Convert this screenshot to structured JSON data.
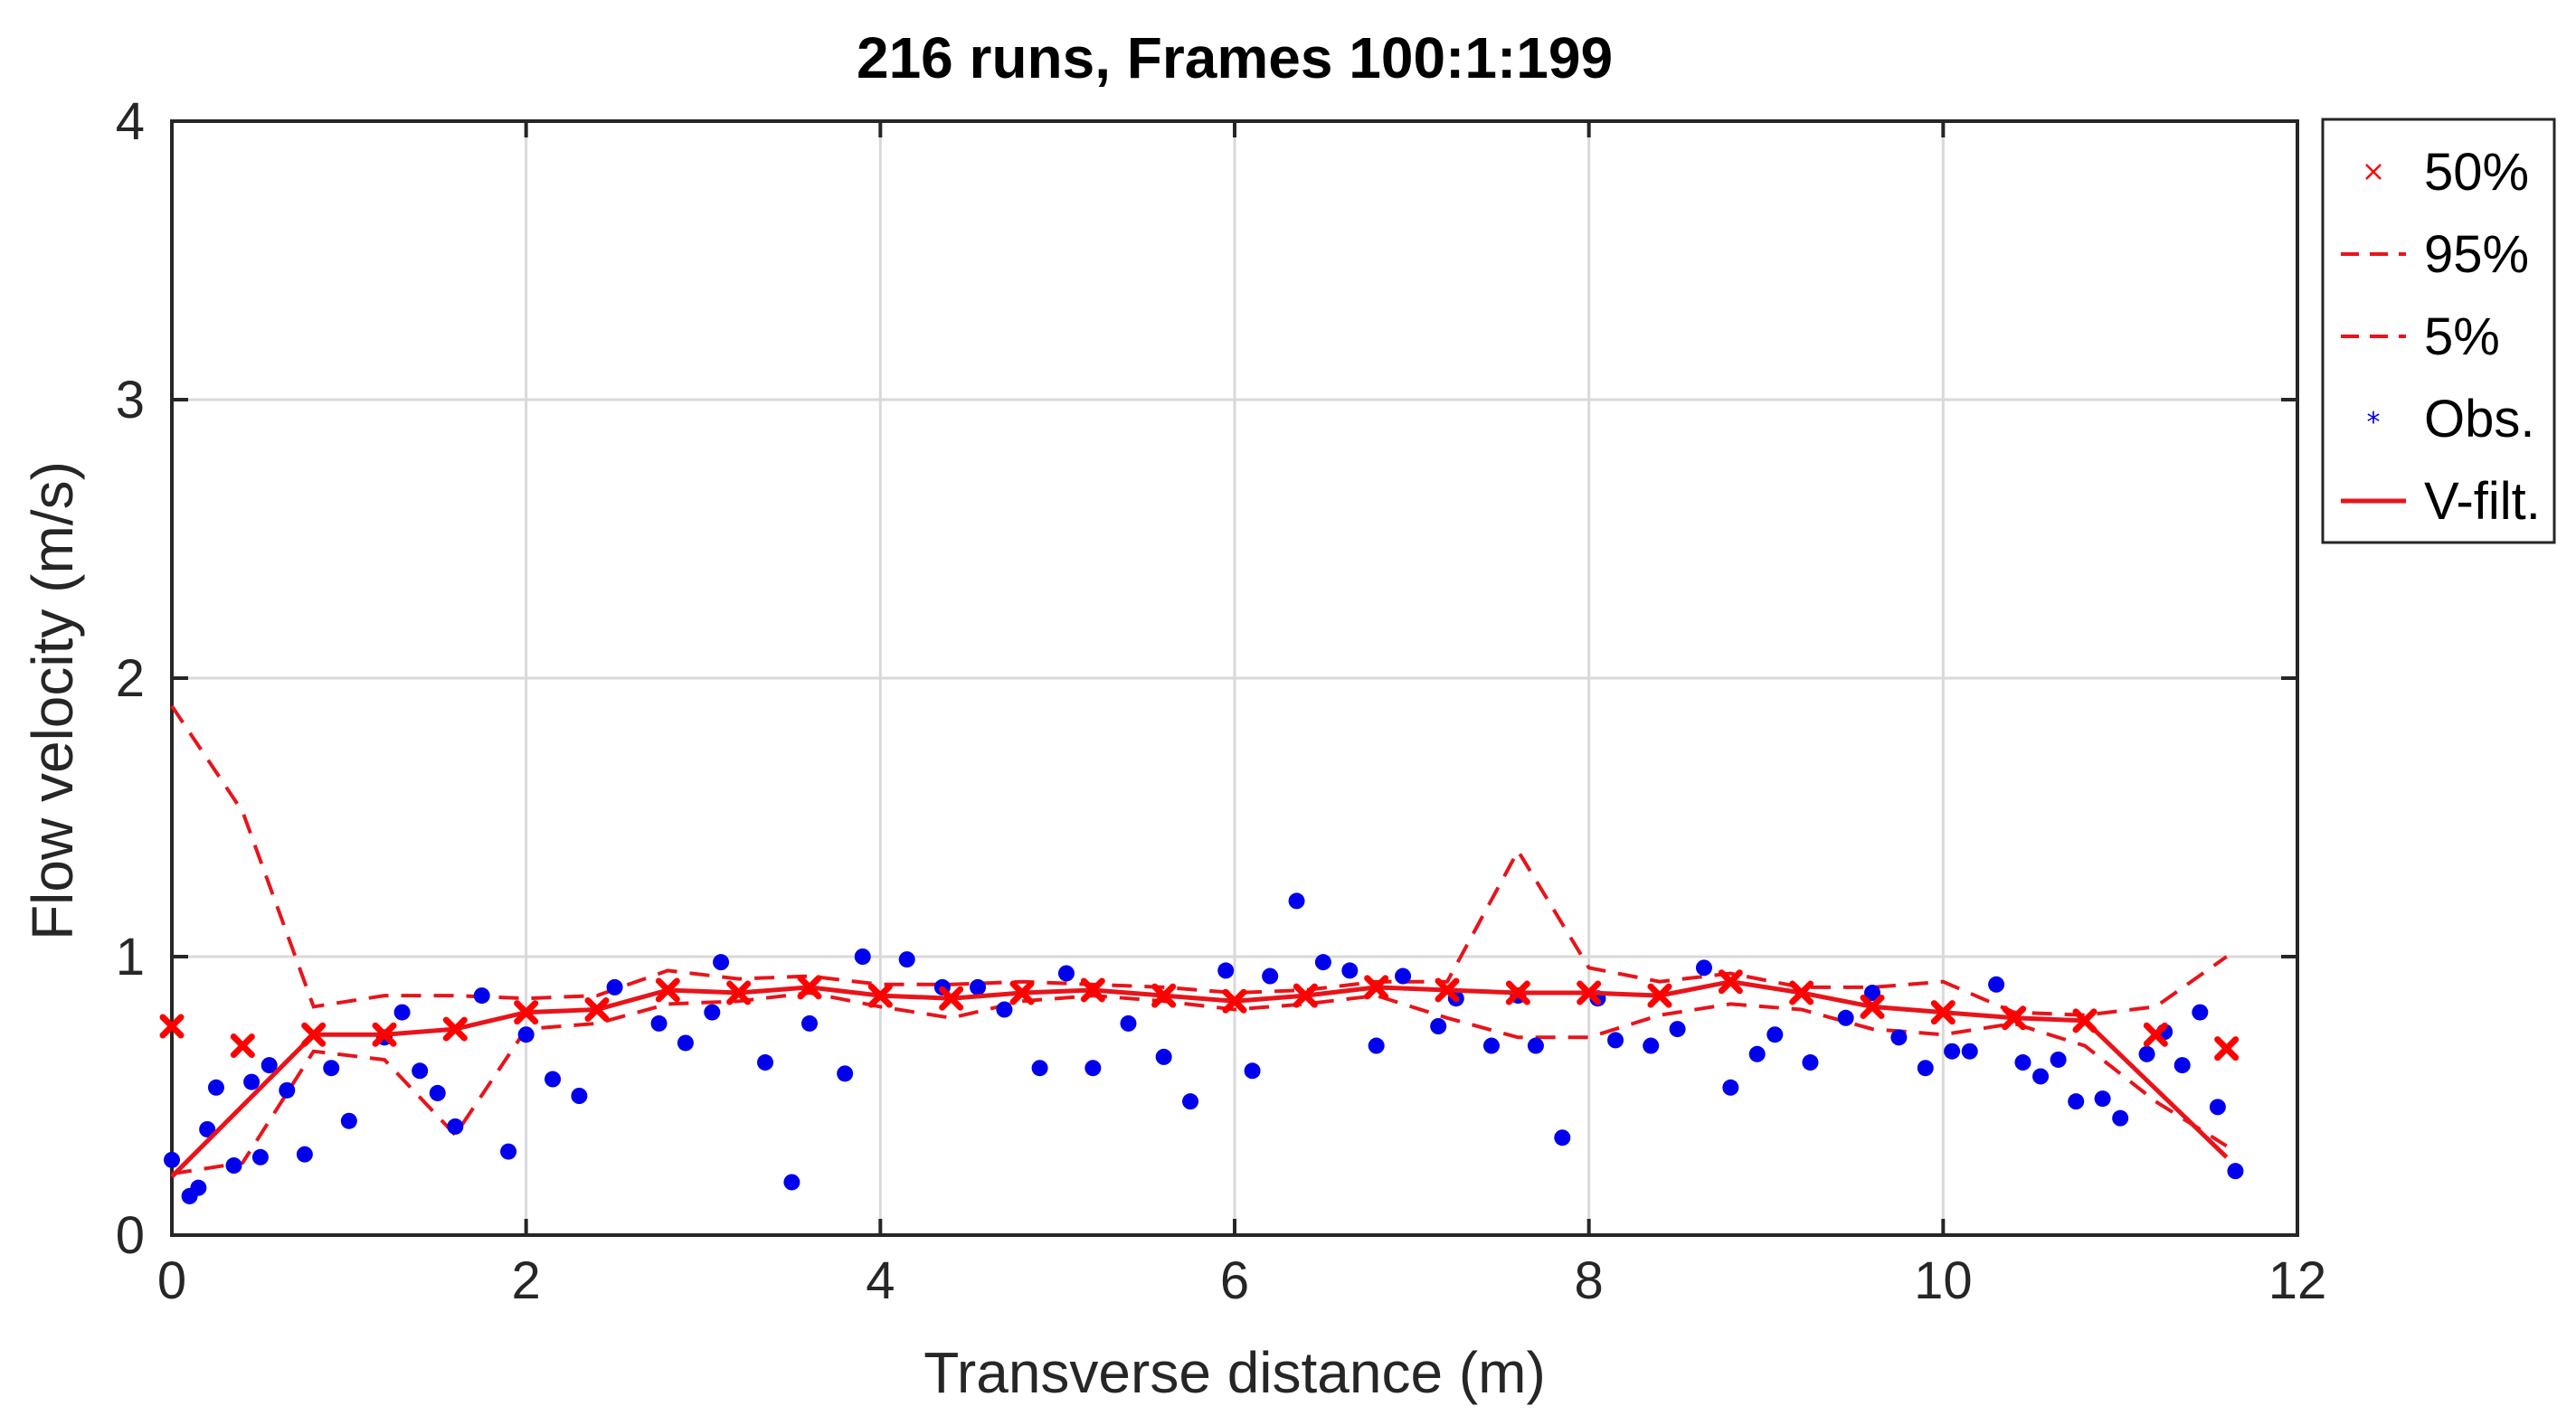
{
  "chart_data": {
    "type": "line",
    "title": "216 runs, Frames 100:1:199",
    "xlabel": "Transverse distance (m)",
    "ylabel": "Flow velocity (m/s)",
    "xlim": [
      0,
      12
    ],
    "ylim": [
      0,
      4
    ],
    "xticks": [
      "0",
      "2",
      "4",
      "6",
      "8",
      "10",
      "12"
    ],
    "yticks": [
      "0",
      "1",
      "2",
      "3",
      "4"
    ],
    "grid": true,
    "legend_position": "outside-right-top",
    "colors": {
      "median": "#ff0000",
      "band": "#e8141a",
      "obs": "#0000ee",
      "vfilt": "#e8141a",
      "grid": "#d9d9d9",
      "axis": "#262626"
    },
    "legend": [
      {
        "label": "50%",
        "style": "x-marker"
      },
      {
        "label": "95%",
        "style": "dashed"
      },
      {
        "label": "5%",
        "style": "dashed"
      },
      {
        "label": "Obs.",
        "style": "star-marker"
      },
      {
        "label": "V-filt.",
        "style": "solid"
      }
    ],
    "series": [
      {
        "name": "50%",
        "x": [
          0,
          0.4,
          0.8,
          1.2,
          1.6,
          2.0,
          2.4,
          2.8,
          3.2,
          3.6,
          4.0,
          4.4,
          4.8,
          5.2,
          5.6,
          6.0,
          6.4,
          6.8,
          7.2,
          7.6,
          8.0,
          8.4,
          8.8,
          9.2,
          9.6,
          10.0,
          10.4,
          10.8,
          11.2,
          11.6
        ],
        "y": [
          0.75,
          0.68,
          0.72,
          0.72,
          0.74,
          0.8,
          0.81,
          0.88,
          0.87,
          0.89,
          0.86,
          0.85,
          0.87,
          0.88,
          0.86,
          0.84,
          0.86,
          0.89,
          0.88,
          0.87,
          0.87,
          0.86,
          0.91,
          0.87,
          0.82,
          0.8,
          0.78,
          0.77,
          0.72,
          0.67
        ]
      },
      {
        "name": "95%",
        "x": [
          0,
          0.4,
          0.8,
          1.2,
          1.6,
          2.0,
          2.4,
          2.8,
          3.2,
          3.6,
          4.0,
          4.4,
          4.8,
          5.2,
          5.6,
          6.0,
          6.4,
          6.8,
          7.2,
          7.6,
          8.0,
          8.4,
          8.8,
          9.2,
          9.6,
          10.0,
          10.4,
          10.8,
          11.2,
          11.6
        ],
        "y": [
          1.9,
          1.52,
          0.82,
          0.86,
          0.86,
          0.85,
          0.86,
          0.95,
          0.92,
          0.93,
          0.9,
          0.9,
          0.91,
          0.9,
          0.89,
          0.87,
          0.88,
          0.91,
          0.91,
          1.38,
          0.96,
          0.91,
          0.94,
          0.89,
          0.89,
          0.91,
          0.8,
          0.79,
          0.82,
          1.0
        ]
      },
      {
        "name": "5%",
        "x": [
          0,
          0.4,
          0.8,
          1.2,
          1.6,
          2.0,
          2.4,
          2.8,
          3.2,
          3.6,
          4.0,
          4.4,
          4.8,
          5.2,
          5.6,
          6.0,
          6.4,
          6.8,
          7.2,
          7.6,
          8.0,
          8.4,
          8.8,
          9.2,
          9.6,
          10.0,
          10.4,
          10.8,
          11.2,
          11.6
        ],
        "y": [
          0.22,
          0.26,
          0.66,
          0.63,
          0.36,
          0.74,
          0.76,
          0.83,
          0.84,
          0.87,
          0.82,
          0.78,
          0.84,
          0.86,
          0.84,
          0.81,
          0.83,
          0.86,
          0.78,
          0.71,
          0.71,
          0.79,
          0.83,
          0.81,
          0.74,
          0.72,
          0.76,
          0.68,
          0.48,
          0.32
        ]
      },
      {
        "name": "Obs.",
        "x": [
          0.0,
          0.1,
          0.15,
          0.2,
          0.25,
          0.35,
          0.45,
          0.5,
          0.55,
          0.65,
          0.75,
          0.9,
          1.0,
          1.2,
          1.3,
          1.4,
          1.5,
          1.6,
          1.75,
          1.9,
          2.0,
          2.15,
          2.3,
          2.5,
          2.75,
          2.9,
          3.05,
          3.1,
          3.35,
          3.5,
          3.6,
          3.8,
          3.9,
          4.15,
          4.35,
          4.55,
          4.7,
          4.9,
          5.05,
          5.2,
          5.4,
          5.6,
          5.75,
          5.95,
          6.1,
          6.2,
          6.35,
          6.5,
          6.65,
          6.8,
          6.95,
          7.15,
          7.25,
          7.45,
          7.6,
          7.7,
          7.85,
          8.05,
          8.15,
          8.35,
          8.5,
          8.65,
          8.8,
          8.95,
          9.05,
          9.25,
          9.45,
          9.6,
          9.75,
          9.9,
          10.05,
          10.15,
          10.3,
          10.45,
          10.55,
          10.65,
          10.75,
          10.9,
          11.0,
          11.15,
          11.25,
          11.35,
          11.45,
          11.55,
          11.65
        ],
        "y": [
          0.27,
          0.14,
          0.17,
          0.38,
          0.53,
          0.25,
          0.55,
          0.28,
          0.61,
          0.52,
          0.29,
          0.6,
          0.41,
          0.71,
          0.8,
          0.59,
          0.51,
          0.39,
          0.86,
          0.3,
          0.72,
          0.56,
          0.5,
          0.89,
          0.76,
          0.69,
          0.8,
          0.98,
          0.62,
          0.19,
          0.76,
          0.58,
          1.0,
          0.99,
          0.89,
          0.89,
          0.81,
          0.6,
          0.94,
          0.6,
          0.76,
          0.64,
          0.48,
          0.95,
          0.59,
          0.93,
          1.2,
          0.98,
          0.95,
          0.68,
          0.93,
          0.75,
          0.85,
          0.68,
          0.86,
          0.68,
          0.35,
          0.85,
          0.7,
          0.68,
          0.74,
          0.96,
          0.53,
          0.65,
          0.72,
          0.62,
          0.78,
          0.87,
          0.71,
          0.6,
          0.66,
          0.66,
          0.9,
          0.62,
          0.57,
          0.63,
          0.48,
          0.49,
          0.42,
          0.65,
          0.73,
          0.61,
          0.8,
          0.46,
          0.23
        ]
      },
      {
        "name": "V-filt.",
        "x": [
          0,
          0.8,
          1.2,
          1.6,
          2.0,
          2.4,
          2.8,
          3.2,
          3.6,
          4.0,
          4.4,
          4.8,
          5.2,
          5.6,
          6.0,
          6.4,
          6.8,
          7.2,
          7.6,
          8.0,
          8.4,
          8.8,
          9.2,
          9.6,
          10.0,
          10.4,
          10.8,
          11.6
        ],
        "y": [
          0.21,
          0.72,
          0.72,
          0.74,
          0.8,
          0.81,
          0.88,
          0.87,
          0.89,
          0.86,
          0.85,
          0.87,
          0.88,
          0.86,
          0.84,
          0.86,
          0.89,
          0.88,
          0.87,
          0.87,
          0.86,
          0.91,
          0.87,
          0.82,
          0.8,
          0.78,
          0.77,
          0.28
        ]
      }
    ]
  }
}
